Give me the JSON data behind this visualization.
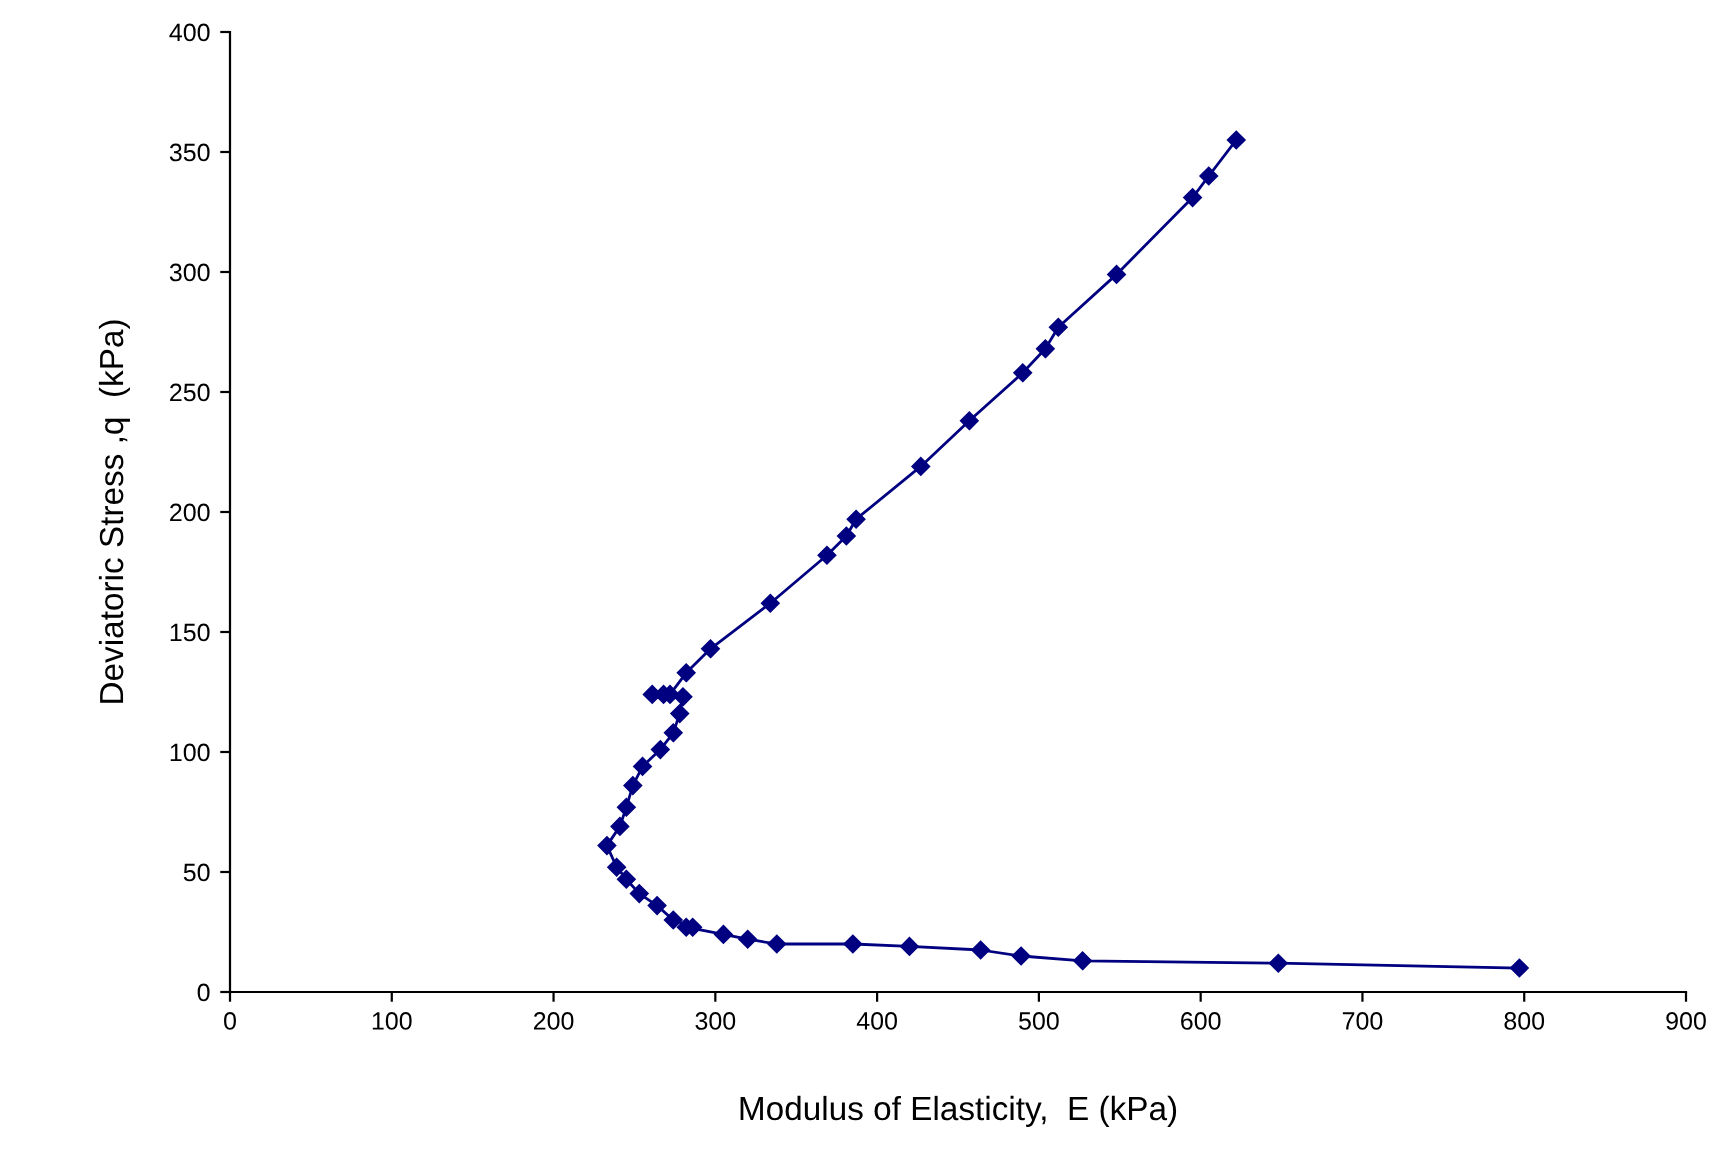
{
  "chart_data": {
    "type": "line",
    "xlabel": "Modulus of Elasticity,  E (kPa)",
    "ylabel": "Deviatoric Stress ,q  (kPa)",
    "series": [
      {
        "color": "#000080",
        "x": [
          797,
          648,
          527,
          489,
          464,
          420,
          385,
          338,
          320,
          305,
          282,
          286,
          274,
          264,
          253,
          245,
          239,
          233,
          241,
          245,
          249,
          255,
          266,
          274,
          278,
          280,
          261,
          268,
          272,
          282,
          297,
          334,
          369,
          381,
          387,
          427,
          457,
          490,
          504,
          512,
          548,
          595,
          605,
          622
        ],
        "values": [
          10,
          12,
          13,
          15,
          17.5,
          19,
          20,
          20,
          22,
          24,
          27,
          27,
          30,
          36,
          41,
          47,
          52,
          61,
          69,
          77,
          86,
          94,
          101,
          108,
          116,
          123,
          124,
          124,
          124,
          133,
          143,
          162,
          182,
          190,
          197,
          219,
          238,
          258,
          268,
          277,
          299,
          331,
          340,
          355
        ]
      }
    ],
    "xlim": [
      0,
      900
    ],
    "ylim": [
      0,
      400
    ],
    "xticks": [
      0,
      100,
      200,
      300,
      400,
      500,
      600,
      700,
      800,
      900
    ],
    "yticks": [
      0,
      50,
      100,
      150,
      200,
      250,
      300,
      350,
      400
    ],
    "marker": "diamond",
    "line_style": "solid",
    "grid": false,
    "legend": false
  }
}
